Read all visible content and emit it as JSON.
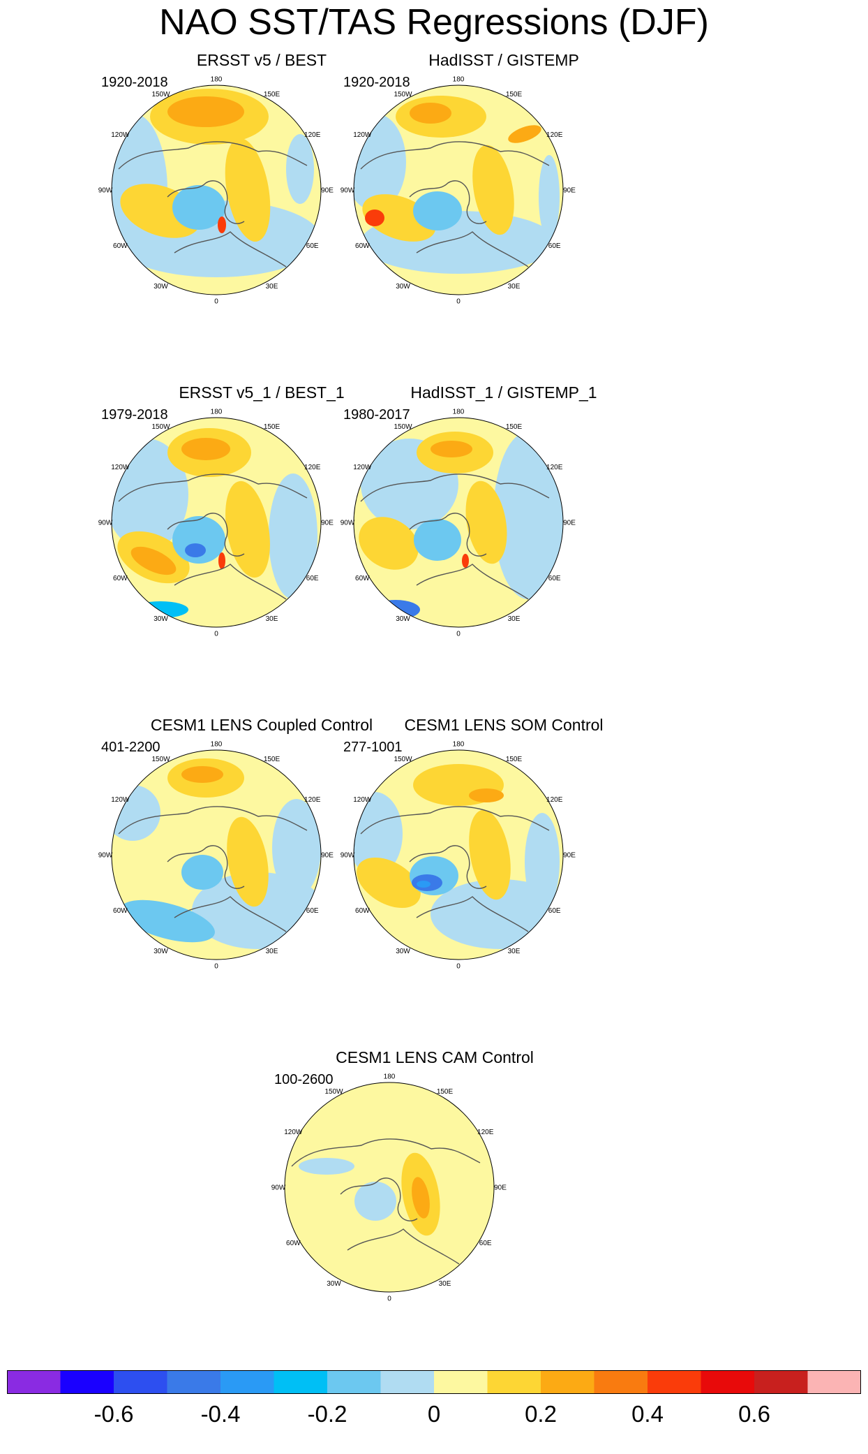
{
  "title": "NAO SST/TAS Regressions (DJF)",
  "lon_labels": [
    "180",
    "150E",
    "120E",
    "90E",
    "60E",
    "30E",
    "0",
    "30W",
    "60W",
    "90W",
    "120W",
    "150W"
  ],
  "panels": [
    {
      "title": "ERSST v5 / BEST",
      "period": "1920-2018",
      "pattern": "obs"
    },
    {
      "title": "HadISST / GISTEMP",
      "period": "1920-2018",
      "pattern": "obs2"
    },
    {
      "title": "ERSST v5_1 / BEST_1",
      "period": "1979-2018",
      "pattern": "recent"
    },
    {
      "title": "HadISST_1 / GISTEMP_1",
      "period": "1980-2017",
      "pattern": "recent2"
    },
    {
      "title": "CESM1 LENS Coupled Control",
      "period": "401-2200",
      "pattern": "coupled"
    },
    {
      "title": "CESM1 LENS SOM Control",
      "period": "277-1001",
      "pattern": "som"
    },
    {
      "title": "CESM1 LENS CAM Control",
      "period": "100-2600",
      "pattern": "cam"
    }
  ],
  "colorbar": {
    "colors": [
      "#8a2be2",
      "#1a00ff",
      "#2d4ff0",
      "#3a7ae8",
      "#2a9af5",
      "#00bff5",
      "#6cc8f0",
      "#b0dcf2",
      "#fdf8a0",
      "#fdd634",
      "#fcaa14",
      "#f97b10",
      "#fa3c0a",
      "#e80a0a",
      "#c8201e",
      "#fbb4b4"
    ],
    "labels": [
      "-0.6",
      "-0.4",
      "-0.2",
      "0",
      "0.2",
      "0.4",
      "0.6"
    ],
    "label_values": [
      -0.6,
      -0.4,
      -0.2,
      0,
      0.2,
      0.4,
      0.6
    ],
    "min": -0.8,
    "max": 0.8
  }
}
